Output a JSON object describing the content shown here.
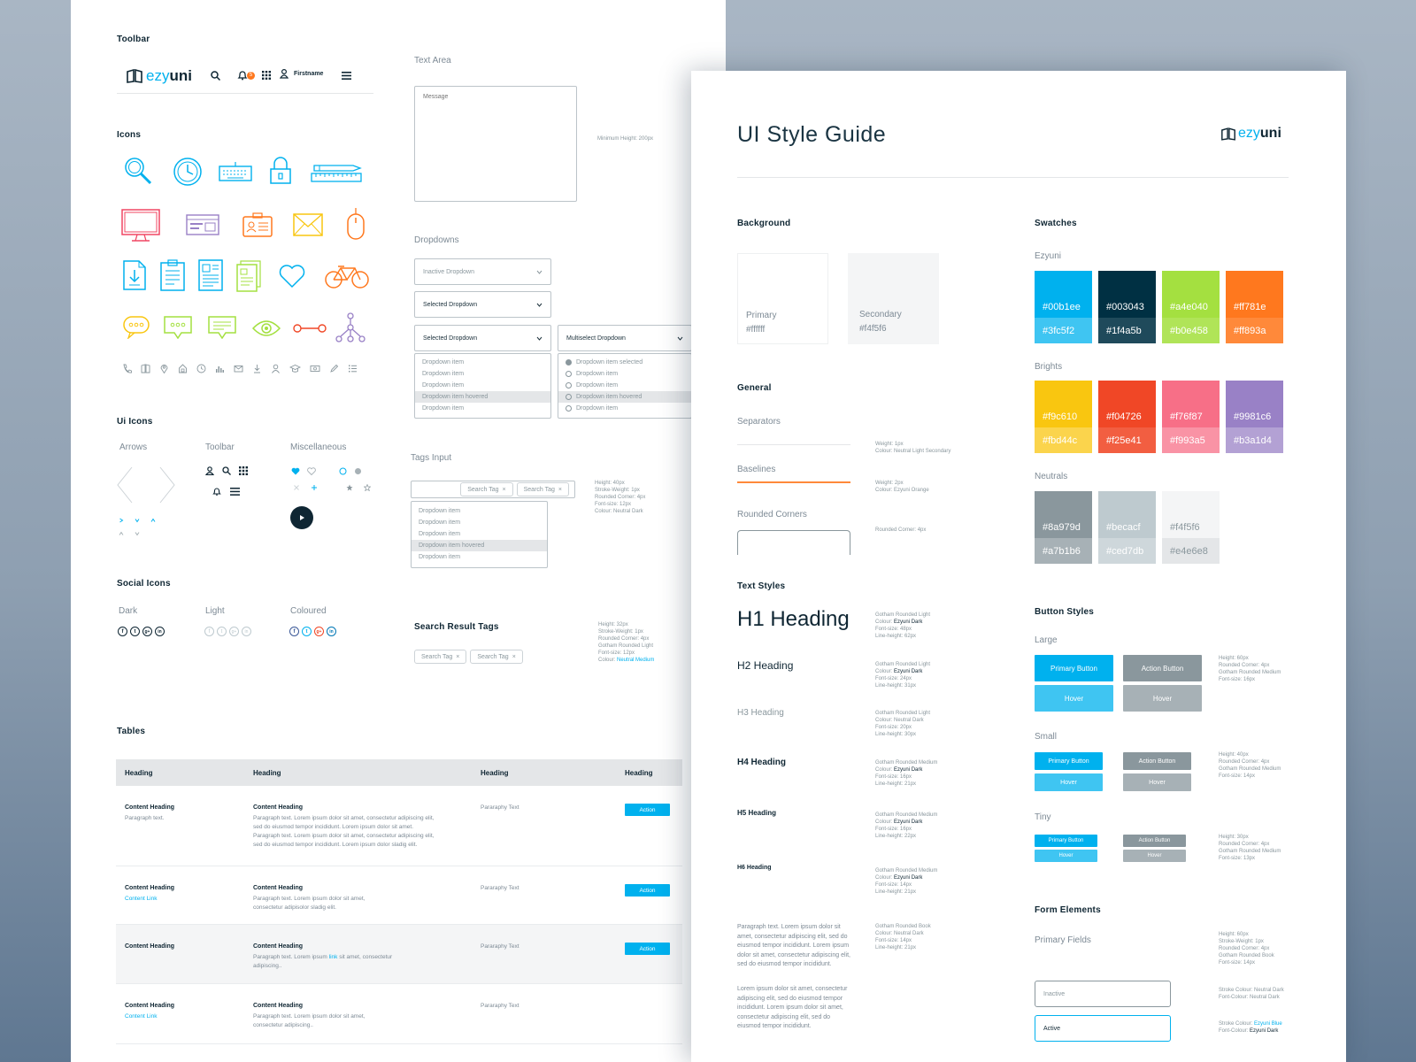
{
  "left": {
    "toolbar_label": "Toolbar",
    "logo_text": "ezyuni",
    "bell_count": "5",
    "user_name": "Firstname",
    "icons_label": "Icons",
    "ui_icons_label": "Ui Icons",
    "ui_groups": [
      "Arrows",
      "Toolbar",
      "Miscellaneous"
    ],
    "social_label": "Social Icons",
    "social_groups": [
      "Dark",
      "Light",
      "Coloured"
    ],
    "tables_label": "Tables",
    "text_area_label": "Text Area",
    "textarea_placeholder": "Message",
    "textarea_note": "Minimum Height: 200px",
    "dropdowns_label": "Dropdowns",
    "dd_inactive": "Inactive Dropdown",
    "dd_selected": "Selected Dropdown",
    "dd_multiselect": "Multiselect Dropdown",
    "dd_items": [
      "Dropdown item",
      "Dropdown item",
      "Dropdown item",
      "Dropdown item hovered",
      "Dropdown item"
    ],
    "dd_multi_items": [
      "Dropdown item selected",
      "Dropdown item",
      "Dropdown item",
      "Dropdown item hovered",
      "Dropdown item"
    ],
    "tags_label": "Tags Input",
    "tag_text": "Search Tag",
    "tag_close": "×",
    "tags_note": [
      "Height: 40px",
      "Stroke-Weight: 1px",
      "Rounded Corner: 4px",
      "Font-size: 12px",
      "Colour: Neutral Dark"
    ],
    "srt_label": "Search Result Tags",
    "srt_note": [
      "Height: 32px",
      "Stroke-Weight: 1px",
      "Rounded Corner: 4px",
      "Gotham Rounded Light",
      "Font-size: 12px"
    ],
    "srt_colour_label": "Colour:",
    "srt_colour_value": "Neutral Medium",
    "table": {
      "headings": [
        "Heading",
        "Heading",
        "Heading",
        "Heading"
      ],
      "rows": [
        {
          "h1": "Content Heading",
          "p1": "Paragraph text.",
          "h2": "Content Heading",
          "p2": "Paragraph text. Lorem ipsum dolor sit amet, consectetur adipiscing elit, sed do eiusmod tempor incididunt. Lorem ipsum dolor sit amet. Paragraph text. Lorem ipsum dolor sit amet, consectetur adipiscing elit, sed do eiusmod tempor incididunt. Lorem ipsum dolor sladig elit.",
          "p3": "Pararaphy Text",
          "action": "Action"
        },
        {
          "h1": "Content Heading",
          "link": "Content Link",
          "h2": "Content Heading",
          "p2": "Paragraph text. Lorem ipsum dolor sit amet, consectetur adipisolor sladig elit.",
          "p3": "Pararaphy Text",
          "action": "Action"
        },
        {
          "h1": "Content Heading",
          "h2": "Content Heading",
          "p2a": "Paragraph text. Lorem ipsum",
          "p2link": "link",
          "p2b": "sit amet, consectetur adipiscing..",
          "p3": "Pararaphy Text",
          "action": "Action"
        },
        {
          "h1": "Content Heading",
          "link": "Content Link",
          "h2": "Content Heading",
          "p2": "Paragraph text. Lorem ipsum dolor sit amet, consectetur adipiscing..",
          "p3": "Pararaphy Text"
        }
      ]
    }
  },
  "right": {
    "title": "UI Style Guide",
    "logo_text": "ezyuni",
    "background_label": "Background",
    "bg_primary": {
      "name": "Primary",
      "hex": "#ffffff"
    },
    "bg_secondary": {
      "name": "Secondary",
      "hex": "#f4f5f6"
    },
    "general_label": "General",
    "separators_label": "Separators",
    "separators_note": [
      "Weight: 1px",
      "Colour: Neutral Light Secondary"
    ],
    "baselines_label": "Baselines",
    "baselines_note": [
      "Weight: 2px",
      "Colour: Ezyuni Orange"
    ],
    "rounded_label": "Rounded Corners",
    "rounded_note": "Rounded Corner: 4px",
    "text_styles_label": "Text Styles",
    "h1": "H1 Heading",
    "h2": "H2 Heading",
    "h3": "H3 Heading",
    "h4": "H4 Heading",
    "h5": "H5 Heading",
    "h6": "H6 Heading",
    "h_notes": [
      [
        "Gotham Rounded Light",
        "Colour:",
        "Ezyuni Dark",
        "Font-size: 48px",
        "Line-height: 62px"
      ],
      [
        "Gotham Rounded Light",
        "Colour:",
        "Ezyuni Dark",
        "Font-size: 24px",
        "Line-height: 31px"
      ],
      [
        "Gotham Rounded Light",
        "Colour: Neutral Dark",
        "",
        "Font-size: 20px",
        "Line-height: 30px"
      ],
      [
        "Gotham Rounded Medium",
        "Colour:",
        "Ezyuni Dark",
        "Font-size: 16px",
        "Line-height: 21px"
      ],
      [
        "Gotham Rounded Medium",
        "Colour:",
        "Ezyuni Dark",
        "Font-size: 16px",
        "Line-height: 22px"
      ],
      [
        "Gotham Rounded Medium",
        "Colour:",
        "Ezyuni Dark",
        "Font-size: 14px",
        "Line-height: 21px"
      ]
    ],
    "para_note": [
      "Gotham Rounded Book",
      "Colour: Neutral Dark",
      "Font-size: 14px",
      "Line-height: 21px"
    ],
    "para1": "Paragraph text. Lorem ipsum dolor sit amet, consectetur adipiscing elit, sed do eiusmod tempor incididunt. Lorem ipsum dolor sit amet, consectetur adipiscing elit, sed do eiusmod tempor incididunt.",
    "para2": "Lorem ipsum dolor sit amet, consectetur adipiscing elit, sed do eiusmod tempor incididunt. Lorem ipsum dolor sit amet, consectetur adipiscing elit, sed do eiusmod tempor incididunt.",
    "swatches_label": "Swatches",
    "ezyuni_label": "Ezyuni",
    "brights_label": "Brights",
    "neutrals_label": "Neutrals",
    "swatches": {
      "ezyuni": [
        [
          "#00b1ee",
          "#3fc5f2"
        ],
        [
          "#003043",
          "#1f4a5b"
        ],
        [
          "#a4e040",
          "#b0e458"
        ],
        [
          "#ff781e",
          "#ff893a"
        ]
      ],
      "brights": [
        [
          "#f9c610",
          "#fbd44c"
        ],
        [
          "#f04726",
          "#f25e41"
        ],
        [
          "#f76f87",
          "#f993a5"
        ],
        [
          "#9981c6",
          "#b3a1d4"
        ]
      ],
      "neutrals": [
        [
          "#8a979d",
          "#a7b1b6"
        ],
        [
          "#becacf",
          "#ced7db"
        ],
        [
          "#f4f5f6",
          "#e4e6e8"
        ]
      ]
    },
    "button_styles_label": "Button Styles",
    "large_label": "Large",
    "small_label": "Small",
    "tiny_label": "Tiny",
    "primary_btn": "Primary Button",
    "action_btn": "Action Button",
    "action_btn_small": "Action  Button",
    "hover": "Hover",
    "large_note": [
      "Height: 60px",
      "Rounded Corner: 4px",
      "Gotham Rounded Medium",
      "Font-size: 16px"
    ],
    "small_note": [
      "Height: 40px",
      "Rounded Corner: 4px",
      "Gotham Rounded Medium",
      "Font-size: 14px"
    ],
    "tiny_note": [
      "Height: 30px",
      "Rounded Corner: 4px",
      "Gotham Rounded Medium",
      "Font-size: 13px"
    ],
    "form_label": "Form Elements",
    "primary_fields_label": "Primary Fields",
    "fields_note": [
      "Height: 60px",
      "Stroke-Weight: 1px",
      "Rounded Corner: 4px",
      "Gotham Rounded Book",
      "Font-size: 14px"
    ],
    "field_inactive": "Inactive",
    "field_active": "Active",
    "inactive_note": [
      "Stroke Colour: Neutral Dark",
      "Font-Colour: Neutral Dark"
    ],
    "active_note_stroke": "Stroke Colour:",
    "active_note_stroke_v": "Ezyuni Blue",
    "active_note_font": "Font-Colour:",
    "active_note_font_v": "Ezyuni Dark"
  }
}
